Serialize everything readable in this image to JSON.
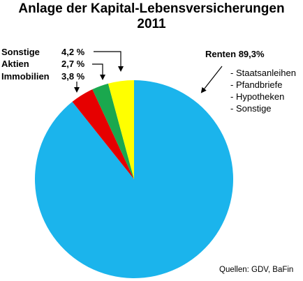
{
  "chart_data": {
    "type": "pie",
    "title": "Anlage der Kapital-Lebensversicherungen",
    "subtitle": "2011",
    "slices": [
      {
        "label": "Renten",
        "value": 89.3,
        "value_text": "89,3%",
        "color": "#1bb4ec"
      },
      {
        "label": "Immobilien",
        "value": 3.8,
        "value_text": "3,8 %",
        "color": "#e60000"
      },
      {
        "label": "Aktien",
        "value": 2.7,
        "value_text": "2,7 %",
        "color": "#1aa84e"
      },
      {
        "label": "Sonstige",
        "value": 4.2,
        "value_text": "4,2 %",
        "color": "#ffff00"
      }
    ],
    "renten_breakdown": [
      "- Staatsanleihen",
      "- Pfandbriefe",
      "- Hypotheken",
      "- Sonstige"
    ],
    "source": "Quellen: GDV, BaFin"
  }
}
